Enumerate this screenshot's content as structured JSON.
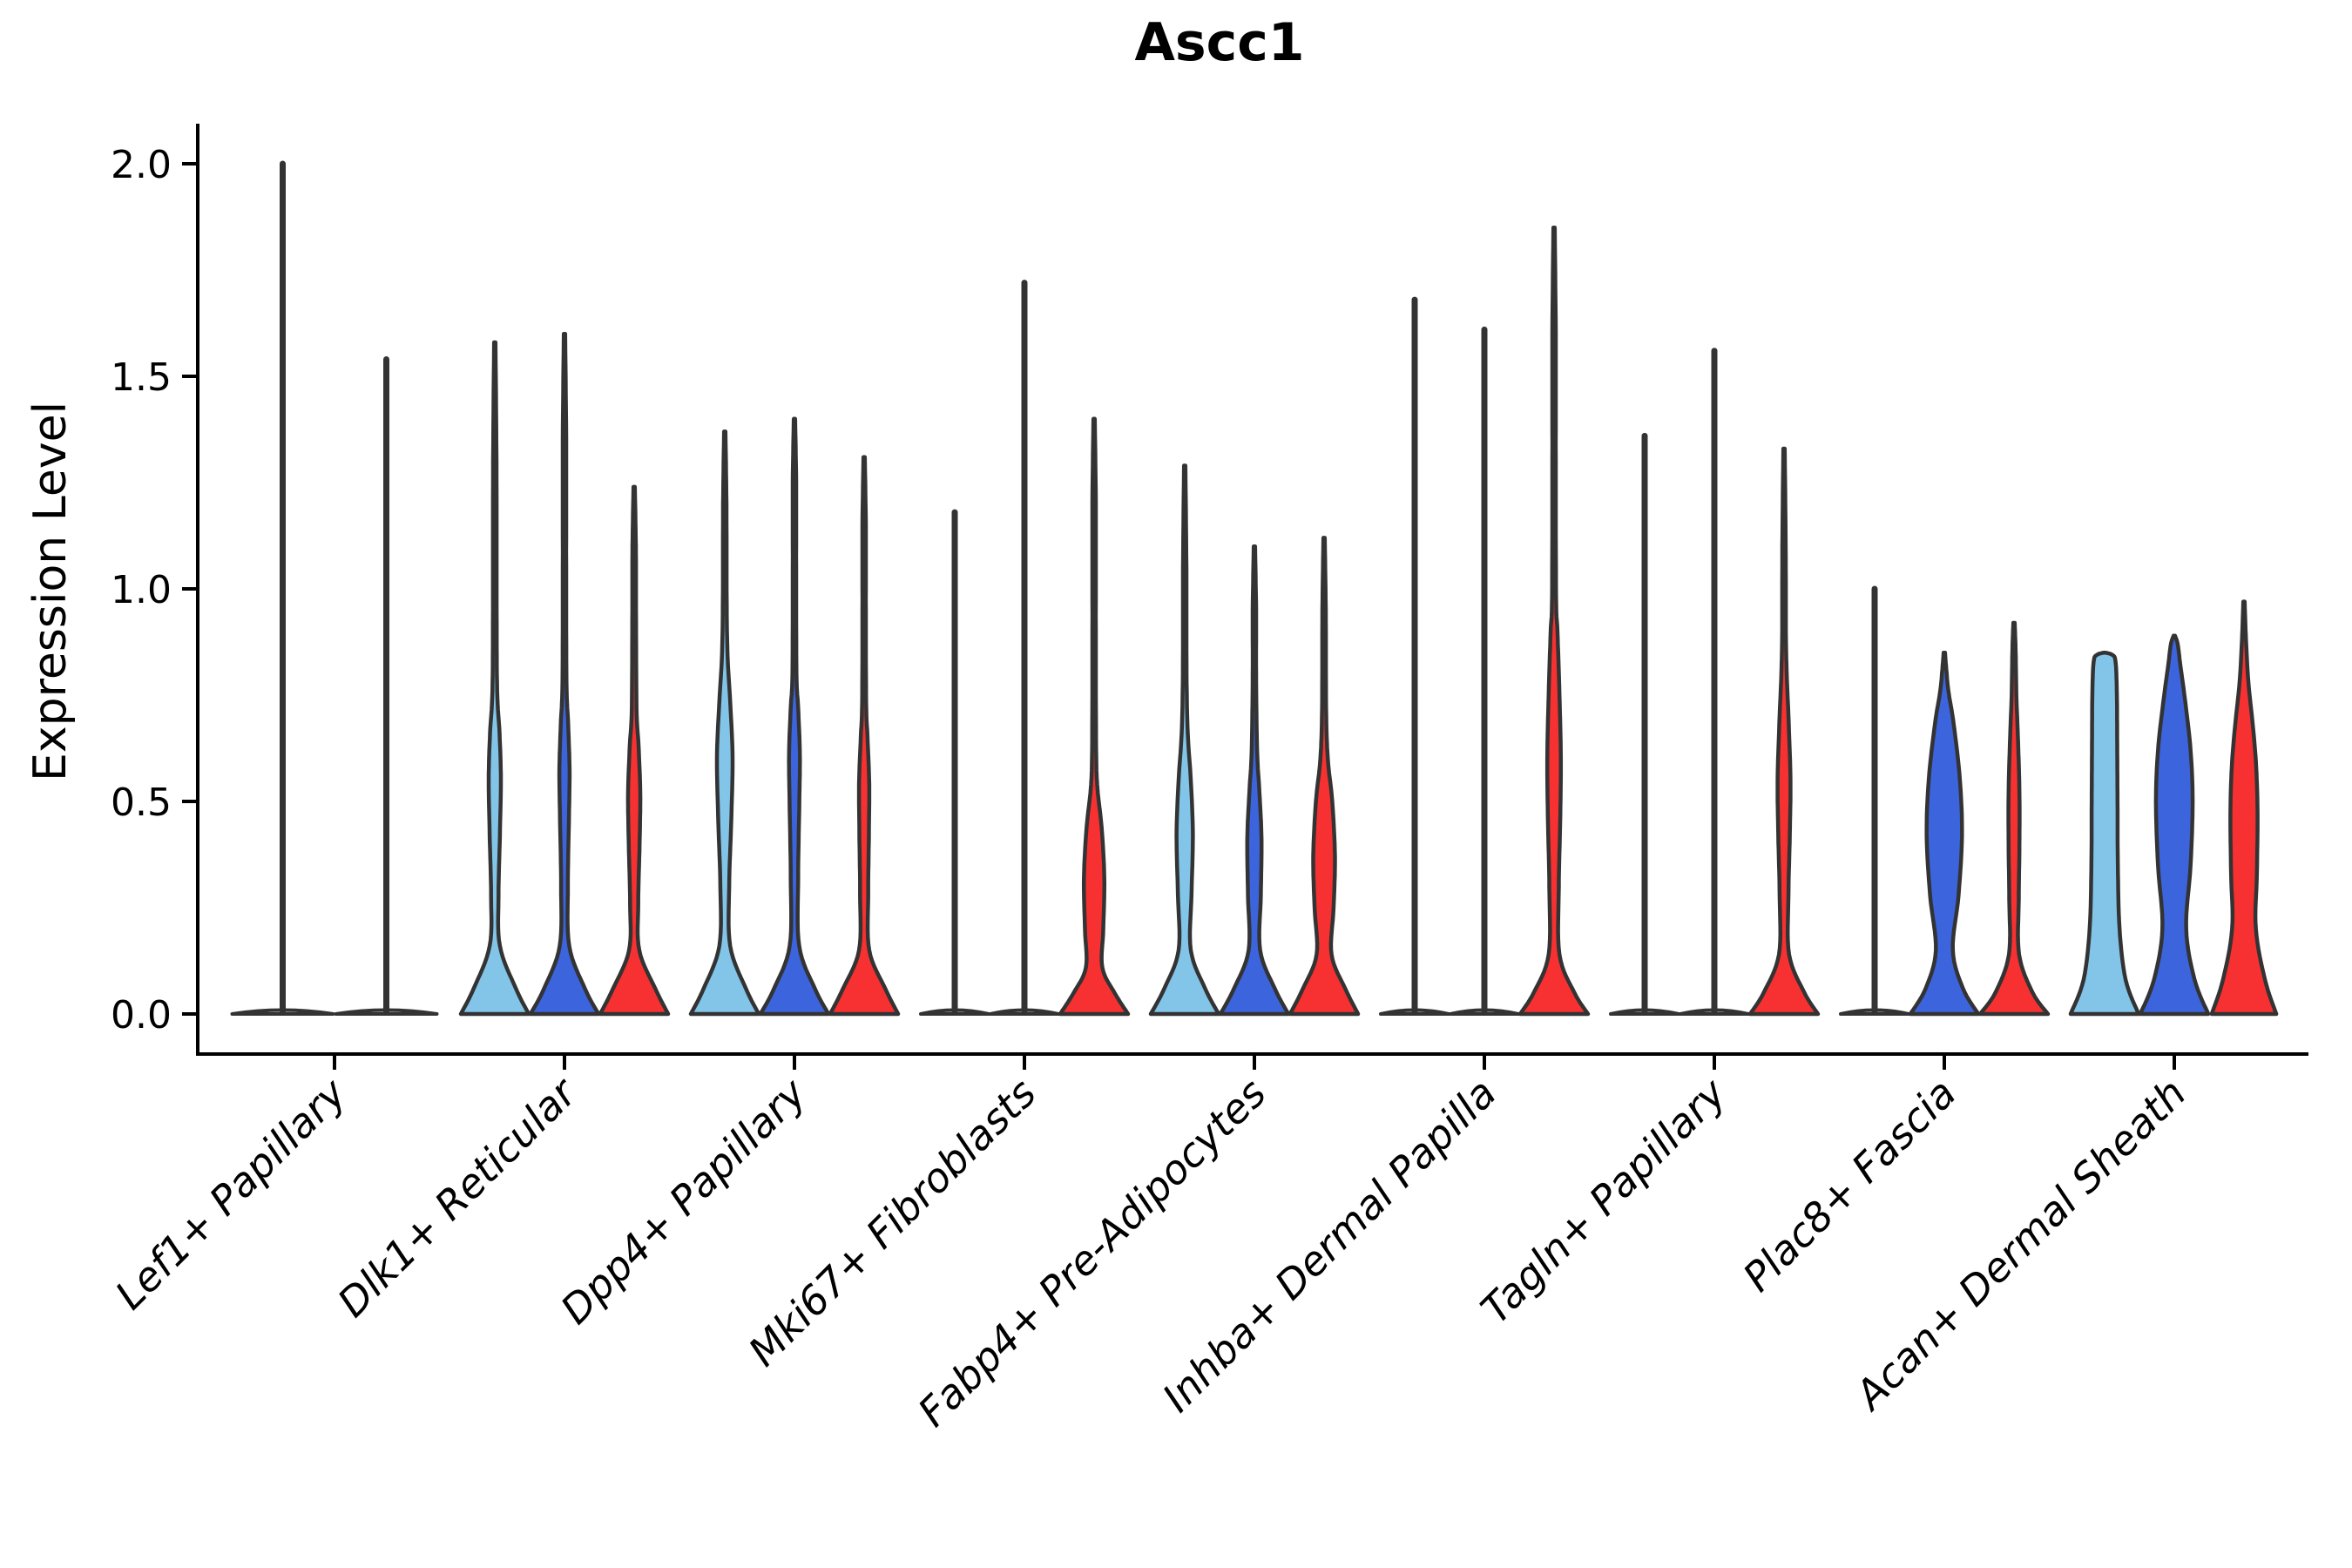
{
  "chart_data": {
    "type": "violin",
    "title": "Ascc1",
    "ylabel": "Expression Level",
    "xlabel": "",
    "grid": false,
    "legend": "none",
    "ylim": [
      0,
      2.09
    ],
    "ytick_values": [
      0.0,
      0.5,
      1.0,
      1.5,
      2.0
    ],
    "ytick_labels": [
      "0.0",
      "0.5",
      "1.0",
      "1.5",
      "2.0"
    ],
    "categories": [
      "Lef1+ Papillary",
      "Dlk1+ Reticular",
      "Dpp4+ Papillary",
      "Mki67+ Fibroblasts",
      "Fabp4+ Pre-Adipocytes",
      "Inhba+ Dermal Papilla",
      "Tagln+ Papillary",
      "Plac8+ Fascia",
      "Acan+ Dermal Sheath"
    ],
    "series": [
      {
        "key": "light_blue",
        "color": "#82C5E9"
      },
      {
        "key": "royal_blue",
        "color": "#3C64DC"
      },
      {
        "key": "red",
        "color": "#F73131"
      }
    ],
    "outline_color": "#333333",
    "axis_color": "#000000",
    "groups": [
      {
        "category": "Lef1+ Papillary",
        "violins": [
          {
            "series": "light_blue",
            "style": "spike",
            "max": 2.0
          },
          {
            "series": "royal_blue",
            "style": "spike",
            "max": 1.54
          }
        ]
      },
      {
        "category": "Dlk1+ Reticular",
        "violins": [
          {
            "series": "light_blue",
            "style": "body",
            "max": 1.58,
            "profile": [
              [
                0,
                1.0
              ],
              [
                0.06,
                0.62
              ],
              [
                0.16,
                0.15
              ],
              [
                0.28,
                0.11
              ],
              [
                0.42,
                0.15
              ],
              [
                0.55,
                0.18
              ],
              [
                0.66,
                0.14
              ],
              [
                0.76,
                0.07
              ],
              [
                0.95,
                0.055
              ],
              [
                1.3,
                0.05
              ]
            ]
          },
          {
            "series": "royal_blue",
            "style": "body",
            "max": 1.6,
            "profile": [
              [
                0,
                1.0
              ],
              [
                0.06,
                0.6
              ],
              [
                0.16,
                0.14
              ],
              [
                0.3,
                0.1
              ],
              [
                0.45,
                0.13
              ],
              [
                0.57,
                0.15
              ],
              [
                0.68,
                0.11
              ],
              [
                0.78,
                0.06
              ],
              [
                1.05,
                0.05
              ],
              [
                1.35,
                0.05
              ]
            ]
          },
          {
            "series": "red",
            "style": "body",
            "max": 1.24,
            "profile": [
              [
                0,
                1.0
              ],
              [
                0.06,
                0.62
              ],
              [
                0.15,
                0.15
              ],
              [
                0.26,
                0.12
              ],
              [
                0.4,
                0.16
              ],
              [
                0.52,
                0.18
              ],
              [
                0.63,
                0.13
              ],
              [
                0.72,
                0.07
              ],
              [
                0.95,
                0.055
              ],
              [
                1.1,
                0.05
              ]
            ]
          }
        ]
      },
      {
        "category": "Dpp4+ Papillary",
        "violins": [
          {
            "series": "light_blue",
            "style": "body",
            "max": 1.37,
            "profile": [
              [
                0,
                1.0
              ],
              [
                0.06,
                0.62
              ],
              [
                0.16,
                0.16
              ],
              [
                0.3,
                0.13
              ],
              [
                0.45,
                0.19
              ],
              [
                0.6,
                0.23
              ],
              [
                0.72,
                0.17
              ],
              [
                0.85,
                0.08
              ],
              [
                1.0,
                0.055
              ],
              [
                1.2,
                0.05
              ]
            ]
          },
          {
            "series": "royal_blue",
            "style": "body",
            "max": 1.4,
            "profile": [
              [
                0,
                1.0
              ],
              [
                0.06,
                0.6
              ],
              [
                0.16,
                0.14
              ],
              [
                0.32,
                0.11
              ],
              [
                0.48,
                0.14
              ],
              [
                0.61,
                0.16
              ],
              [
                0.72,
                0.11
              ],
              [
                0.8,
                0.06
              ],
              [
                1.05,
                0.05
              ],
              [
                1.25,
                0.05
              ]
            ]
          },
          {
            "series": "red",
            "style": "body",
            "max": 1.31,
            "profile": [
              [
                0,
                1.0
              ],
              [
                0.06,
                0.62
              ],
              [
                0.15,
                0.15
              ],
              [
                0.28,
                0.12
              ],
              [
                0.42,
                0.14
              ],
              [
                0.54,
                0.15
              ],
              [
                0.65,
                0.1
              ],
              [
                0.73,
                0.06
              ],
              [
                0.95,
                0.05
              ],
              [
                1.15,
                0.05
              ]
            ]
          }
        ]
      },
      {
        "category": "Mki67+ Fibroblasts",
        "violins": [
          {
            "series": "light_blue",
            "style": "spike",
            "max": 1.18
          },
          {
            "series": "royal_blue",
            "style": "spike",
            "max": 1.72
          },
          {
            "series": "red",
            "style": "body",
            "max": 1.4,
            "profile": [
              [
                0,
                1.0
              ],
              [
                0.05,
                0.6
              ],
              [
                0.11,
                0.24
              ],
              [
                0.2,
                0.27
              ],
              [
                0.32,
                0.3
              ],
              [
                0.44,
                0.22
              ],
              [
                0.53,
                0.1
              ],
              [
                0.62,
                0.06
              ],
              [
                0.9,
                0.05
              ],
              [
                1.2,
                0.05
              ]
            ]
          }
        ]
      },
      {
        "category": "Fabp4+ Pre-Adipocytes",
        "violins": [
          {
            "series": "light_blue",
            "style": "body",
            "max": 1.29,
            "profile": [
              [
                0,
                1.0
              ],
              [
                0.06,
                0.6
              ],
              [
                0.15,
                0.18
              ],
              [
                0.28,
                0.2
              ],
              [
                0.42,
                0.24
              ],
              [
                0.55,
                0.18
              ],
              [
                0.66,
                0.09
              ],
              [
                0.8,
                0.055
              ],
              [
                1.05,
                0.05
              ]
            ]
          },
          {
            "series": "royal_blue",
            "style": "body",
            "max": 1.1,
            "profile": [
              [
                0,
                1.0
              ],
              [
                0.06,
                0.6
              ],
              [
                0.15,
                0.17
              ],
              [
                0.28,
                0.19
              ],
              [
                0.41,
                0.21
              ],
              [
                0.52,
                0.15
              ],
              [
                0.62,
                0.08
              ],
              [
                0.8,
                0.05
              ],
              [
                0.95,
                0.05
              ]
            ]
          },
          {
            "series": "red",
            "style": "body",
            "max": 1.12,
            "profile": [
              [
                0,
                1.0
              ],
              [
                0.06,
                0.62
              ],
              [
                0.14,
                0.22
              ],
              [
                0.25,
                0.28
              ],
              [
                0.37,
                0.32
              ],
              [
                0.5,
                0.24
              ],
              [
                0.6,
                0.11
              ],
              [
                0.72,
                0.06
              ],
              [
                0.95,
                0.05
              ]
            ]
          }
        ]
      },
      {
        "category": "Inhba+ Dermal Papilla",
        "violins": [
          {
            "series": "light_blue",
            "style": "spike",
            "max": 1.68
          },
          {
            "series": "royal_blue",
            "style": "spike",
            "max": 1.61
          },
          {
            "series": "red",
            "style": "body",
            "max": 1.85,
            "profile": [
              [
                0,
                1.0
              ],
              [
                0.05,
                0.6
              ],
              [
                0.14,
                0.16
              ],
              [
                0.3,
                0.14
              ],
              [
                0.45,
                0.18
              ],
              [
                0.6,
                0.2
              ],
              [
                0.75,
                0.16
              ],
              [
                0.9,
                0.1
              ],
              [
                0.98,
                0.06
              ],
              [
                1.3,
                0.05
              ],
              [
                1.6,
                0.05
              ]
            ]
          }
        ]
      },
      {
        "category": "Tagln+ Papillary",
        "violins": [
          {
            "series": "light_blue",
            "style": "spike",
            "max": 1.36
          },
          {
            "series": "royal_blue",
            "style": "spike",
            "max": 1.56
          },
          {
            "series": "red",
            "style": "body",
            "max": 1.33,
            "profile": [
              [
                0,
                1.0
              ],
              [
                0.05,
                0.6
              ],
              [
                0.14,
                0.15
              ],
              [
                0.28,
                0.13
              ],
              [
                0.42,
                0.17
              ],
              [
                0.55,
                0.19
              ],
              [
                0.68,
                0.14
              ],
              [
                0.8,
                0.08
              ],
              [
                0.9,
                0.055
              ],
              [
                1.1,
                0.05
              ]
            ]
          }
        ]
      },
      {
        "category": "Plac8+ Fascia",
        "violins": [
          {
            "series": "light_blue",
            "style": "spike",
            "max": 1.0
          },
          {
            "series": "royal_blue",
            "style": "body",
            "max": 0.85,
            "profile": [
              [
                0,
                1.0
              ],
              [
                0.06,
                0.55
              ],
              [
                0.15,
                0.25
              ],
              [
                0.28,
                0.42
              ],
              [
                0.42,
                0.52
              ],
              [
                0.55,
                0.46
              ],
              [
                0.68,
                0.28
              ],
              [
                0.76,
                0.12
              ],
              [
                0.81,
                0.06
              ]
            ]
          },
          {
            "series": "red",
            "style": "body",
            "max": 0.92,
            "profile": [
              [
                0,
                1.0
              ],
              [
                0.05,
                0.55
              ],
              [
                0.14,
                0.15
              ],
              [
                0.27,
                0.14
              ],
              [
                0.4,
                0.16
              ],
              [
                0.52,
                0.16
              ],
              [
                0.64,
                0.12
              ],
              [
                0.75,
                0.07
              ],
              [
                0.85,
                0.05
              ]
            ]
          }
        ]
      },
      {
        "category": "Acan+ Dermal Sheath",
        "violins": [
          {
            "series": "light_blue",
            "style": "body",
            "max": 0.85,
            "profile": [
              [
                0,
                1.0
              ],
              [
                0.08,
                0.62
              ],
              [
                0.2,
                0.44
              ],
              [
                0.35,
                0.39
              ],
              [
                0.5,
                0.38
              ],
              [
                0.65,
                0.37
              ],
              [
                0.76,
                0.36
              ],
              [
                0.83,
                0.32
              ],
              [
                0.845,
                0.22
              ]
            ]
          },
          {
            "series": "royal_blue",
            "style": "body",
            "max": 0.89,
            "profile": [
              [
                0,
                1.0
              ],
              [
                0.08,
                0.6
              ],
              [
                0.2,
                0.35
              ],
              [
                0.35,
                0.48
              ],
              [
                0.5,
                0.54
              ],
              [
                0.62,
                0.48
              ],
              [
                0.73,
                0.33
              ],
              [
                0.82,
                0.18
              ],
              [
                0.87,
                0.1
              ]
            ]
          },
          {
            "series": "red",
            "style": "body",
            "max": 0.97,
            "profile": [
              [
                0,
                0.95
              ],
              [
                0.08,
                0.62
              ],
              [
                0.2,
                0.35
              ],
              [
                0.33,
                0.38
              ],
              [
                0.47,
                0.4
              ],
              [
                0.58,
                0.36
              ],
              [
                0.68,
                0.26
              ],
              [
                0.78,
                0.13
              ],
              [
                0.88,
                0.06
              ]
            ]
          }
        ]
      }
    ]
  }
}
